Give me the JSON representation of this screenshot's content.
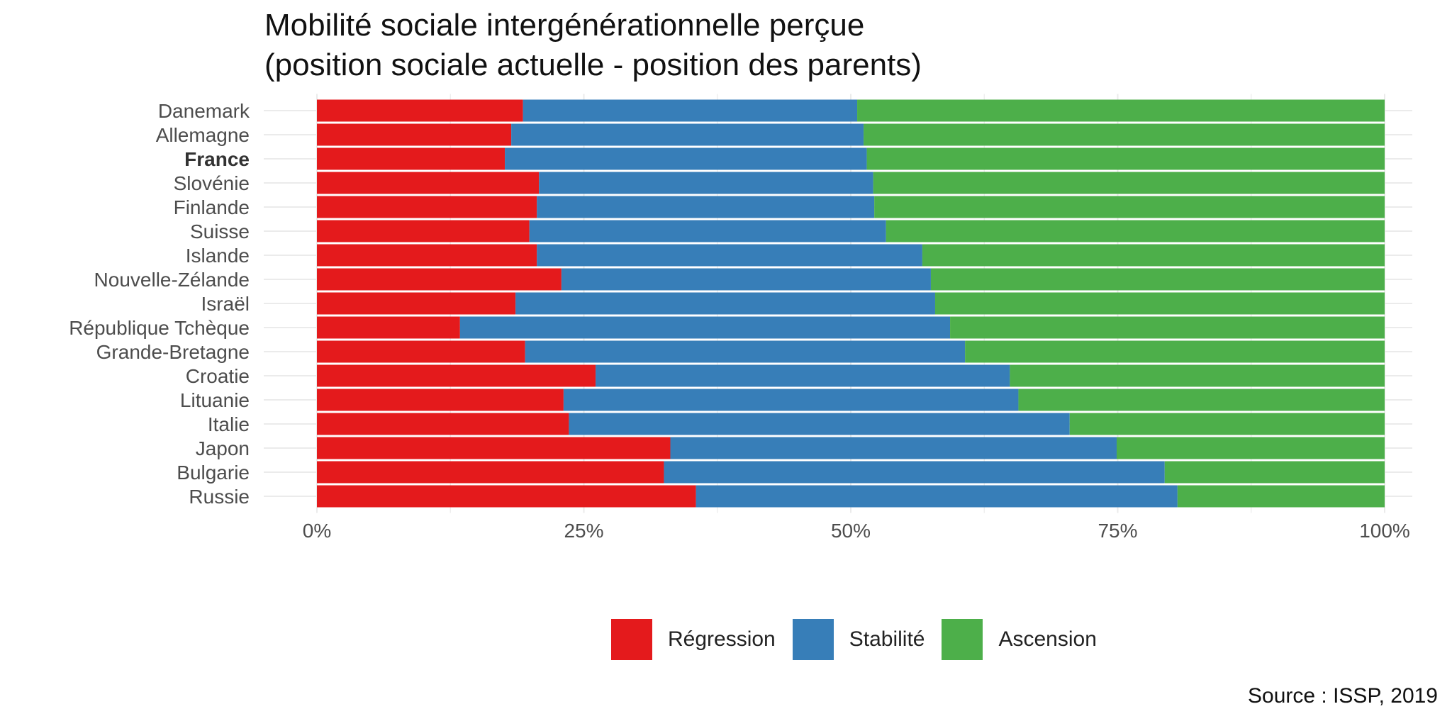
{
  "chart_data": {
    "type": "bar",
    "orientation": "horizontal",
    "stacked": true,
    "title_lines": [
      "Mobilité sociale intergénérationnelle perçue",
      "(position sociale actuelle - position des parents)"
    ],
    "xlabel": "",
    "ylabel": "",
    "xlim": [
      0,
      1
    ],
    "x_ticks": [
      "0%",
      "25%",
      "50%",
      "75%",
      "100%"
    ],
    "grid": true,
    "legend_position": "bottom",
    "highlight_category": "France",
    "categories": [
      "Danemark",
      "Allemagne",
      "France",
      "Slovénie",
      "Finlande",
      "Suisse",
      "Islande",
      "Nouvelle-Zélande",
      "Israël",
      "République Tchèque",
      "Grande-Bretagne",
      "Croatie",
      "Lituanie",
      "Italie",
      "Japon",
      "Bulgarie",
      "Russie"
    ],
    "series": [
      {
        "name": "Régression",
        "color": "#E41A1C",
        "values": [
          0.193,
          0.182,
          0.176,
          0.208,
          0.206,
          0.199,
          0.206,
          0.229,
          0.186,
          0.134,
          0.195,
          0.261,
          0.231,
          0.236,
          0.331,
          0.325,
          0.355
        ]
      },
      {
        "name": "Stabilité",
        "color": "#377EB8",
        "values": [
          0.313,
          0.33,
          0.339,
          0.313,
          0.316,
          0.334,
          0.361,
          0.346,
          0.393,
          0.459,
          0.412,
          0.388,
          0.426,
          0.469,
          0.418,
          0.469,
          0.451
        ]
      },
      {
        "name": "Ascension",
        "color": "#4DAF4A",
        "values": [
          0.494,
          0.488,
          0.485,
          0.479,
          0.478,
          0.467,
          0.433,
          0.425,
          0.421,
          0.407,
          0.393,
          0.351,
          0.343,
          0.295,
          0.251,
          0.206,
          0.194
        ]
      }
    ],
    "source": "Source : ISSP, 2019"
  }
}
